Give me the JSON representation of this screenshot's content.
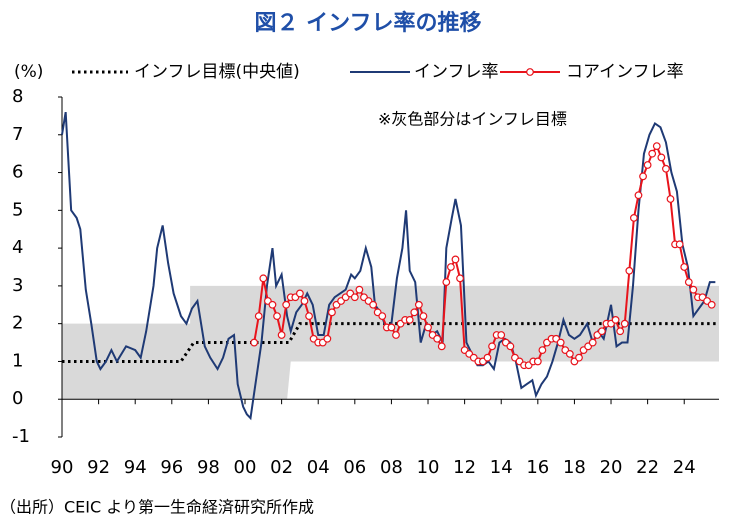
{
  "chart_data": {
    "type": "line",
    "title": "図２ インフレ率の推移",
    "y_unit": "(%)",
    "annotation": "※灰色部分はインフレ目標",
    "xlim": [
      1990,
      2025.9
    ],
    "ylim": [
      -1,
      8
    ],
    "yticks": [
      8,
      7,
      6,
      5,
      4,
      3,
      2,
      1,
      0,
      -1
    ],
    "xticks": [
      {
        "value": 1990,
        "label": "90"
      },
      {
        "value": 1992,
        "label": "92"
      },
      {
        "value": 1994,
        "label": "94"
      },
      {
        "value": 1996,
        "label": "96"
      },
      {
        "value": 1998,
        "label": "98"
      },
      {
        "value": 2000,
        "label": "00"
      },
      {
        "value": 2002,
        "label": "02"
      },
      {
        "value": 2004,
        "label": "04"
      },
      {
        "value": 2006,
        "label": "06"
      },
      {
        "value": 2008,
        "label": "08"
      },
      {
        "value": 2010,
        "label": "10"
      },
      {
        "value": 2012,
        "label": "12"
      },
      {
        "value": 2014,
        "label": "14"
      },
      {
        "value": 2016,
        "label": "16"
      },
      {
        "value": 2018,
        "label": "18"
      },
      {
        "value": 2020,
        "label": "20"
      },
      {
        "value": 2022,
        "label": "22"
      },
      {
        "value": 2024,
        "label": "24"
      }
    ],
    "target_band": {
      "color": "#d9d9d9",
      "x": [
        1990,
        1997,
        1997,
        2002.3,
        2002.5,
        2025.9
      ],
      "low": [
        0,
        0,
        0,
        0,
        1,
        1
      ],
      "high": [
        2,
        2,
        3,
        3,
        3,
        3
      ]
    },
    "series": [
      {
        "name": "インフレ目標(中央値)",
        "color": "#000000",
        "style": "dotted",
        "x": [
          1990,
          1996.5,
          1997.2,
          2002.4,
          2003,
          2025.9
        ],
        "values": [
          1,
          1,
          1.5,
          1.5,
          2,
          2
        ]
      },
      {
        "name": "インフレ率",
        "color": "#1f3a75",
        "style": "solid",
        "x": [
          1990.0,
          1990.2,
          1990.5,
          1990.8,
          1991.0,
          1991.3,
          1991.6,
          1991.9,
          1992.1,
          1992.4,
          1992.7,
          1993.0,
          1993.5,
          1994.0,
          1994.3,
          1994.6,
          1995.0,
          1995.2,
          1995.5,
          1995.8,
          1996.1,
          1996.5,
          1996.8,
          1997.1,
          1997.4,
          1997.8,
          1998.1,
          1998.5,
          1998.8,
          1999.1,
          1999.4,
          1999.6,
          1999.9,
          2000.1,
          2000.3,
          2000.6,
          2000.9,
          2001.2,
          2001.5,
          2001.7,
          2002.0,
          2002.3,
          2002.5,
          2002.8,
          2003.1,
          2003.4,
          2003.7,
          2004.0,
          2004.3,
          2004.6,
          2004.9,
          2005.2,
          2005.5,
          2005.8,
          2006.0,
          2006.3,
          2006.6,
          2006.9,
          2007.1,
          2007.4,
          2007.7,
          2008.0,
          2008.3,
          2008.6,
          2008.8,
          2009.0,
          2009.3,
          2009.6,
          2009.9,
          2010.2,
          2010.5,
          2010.8,
          2011.0,
          2011.3,
          2011.5,
          2011.8,
          2012.1,
          2012.4,
          2012.7,
          2013.0,
          2013.3,
          2013.6,
          2013.9,
          2014.2,
          2014.5,
          2014.8,
          2015.1,
          2015.4,
          2015.7,
          2015.9,
          2016.2,
          2016.5,
          2016.8,
          2017.1,
          2017.4,
          2017.7,
          2018.0,
          2018.3,
          2018.7,
          2019.0,
          2019.3,
          2019.6,
          2020.0,
          2020.3,
          2020.6,
          2020.9,
          2021.2,
          2021.5,
          2021.8,
          2022.1,
          2022.4,
          2022.7,
          2023.0,
          2023.3,
          2023.6,
          2023.9,
          2024.2,
          2024.5,
          2024.8,
          2025.1,
          2025.4,
          2025.7
        ],
        "values": [
          7.0,
          7.6,
          5.0,
          4.8,
          4.5,
          2.9,
          2.0,
          1.0,
          0.8,
          1.0,
          1.3,
          1.0,
          1.4,
          1.3,
          1.1,
          1.8,
          3.0,
          4.0,
          4.6,
          3.6,
          2.8,
          2.2,
          2.0,
          2.4,
          2.6,
          1.4,
          1.1,
          0.8,
          1.1,
          1.6,
          1.7,
          0.4,
          -0.2,
          -0.4,
          -0.5,
          0.5,
          1.5,
          3.0,
          4.0,
          3.0,
          3.3,
          2.2,
          1.8,
          2.3,
          2.5,
          2.8,
          2.5,
          1.7,
          1.7,
          2.5,
          2.7,
          2.8,
          2.9,
          3.3,
          3.2,
          3.4,
          4.0,
          3.5,
          2.5,
          2.3,
          1.9,
          2.0,
          3.2,
          4.0,
          5.0,
          3.4,
          3.1,
          1.5,
          2.0,
          1.7,
          1.8,
          1.5,
          4.0,
          4.8,
          5.3,
          4.6,
          1.5,
          1.2,
          0.9,
          0.9,
          1.0,
          0.8,
          1.5,
          1.6,
          1.5,
          1.0,
          0.3,
          0.4,
          0.5,
          0.1,
          0.4,
          0.6,
          1.0,
          1.5,
          2.1,
          1.7,
          1.6,
          1.7,
          2.0,
          1.5,
          1.8,
          1.6,
          2.5,
          1.4,
          1.5,
          1.5,
          3.0,
          5.0,
          6.5,
          7.0,
          7.3,
          7.2,
          6.8,
          6.0,
          5.5,
          4.1,
          3.5,
          2.2,
          2.4,
          2.6,
          3.1,
          3.1
        ]
      },
      {
        "name": "コアインフレ率",
        "color": "#e8141c",
        "style": "solid",
        "markers": true,
        "x": [
          2000.5,
          2000.75,
          2001.0,
          2001.25,
          2001.5,
          2001.75,
          2002.0,
          2002.25,
          2002.5,
          2002.75,
          2003.0,
          2003.25,
          2003.5,
          2003.75,
          2004.0,
          2004.25,
          2004.5,
          2004.75,
          2005.0,
          2005.25,
          2005.5,
          2005.75,
          2006.0,
          2006.25,
          2006.5,
          2006.75,
          2007.0,
          2007.25,
          2007.5,
          2007.75,
          2008.0,
          2008.25,
          2008.5,
          2008.75,
          2009.0,
          2009.25,
          2009.5,
          2009.75,
          2010.0,
          2010.25,
          2010.5,
          2010.75,
          2011.0,
          2011.25,
          2011.5,
          2011.75,
          2012.0,
          2012.25,
          2012.5,
          2012.75,
          2013.0,
          2013.25,
          2013.5,
          2013.75,
          2014.0,
          2014.25,
          2014.5,
          2014.75,
          2015.0,
          2015.25,
          2015.5,
          2015.75,
          2016.0,
          2016.25,
          2016.5,
          2016.75,
          2017.0,
          2017.25,
          2017.5,
          2017.75,
          2018.0,
          2018.25,
          2018.5,
          2018.75,
          2019.0,
          2019.25,
          2019.5,
          2019.75,
          2020.0,
          2020.25,
          2020.5,
          2020.75,
          2021.0,
          2021.25,
          2021.5,
          2021.75,
          2022.0,
          2022.25,
          2022.5,
          2022.75,
          2023.0,
          2023.25,
          2023.5,
          2023.75,
          2024.0,
          2024.25,
          2024.5,
          2024.75,
          2025.0,
          2025.25,
          2025.5
        ],
        "values": [
          1.5,
          2.2,
          3.2,
          2.6,
          2.5,
          2.2,
          1.7,
          2.5,
          2.7,
          2.7,
          2.8,
          2.6,
          2.2,
          1.6,
          1.5,
          1.5,
          1.6,
          2.3,
          2.5,
          2.6,
          2.7,
          2.8,
          2.7,
          2.9,
          2.7,
          2.6,
          2.5,
          2.3,
          2.2,
          1.9,
          1.9,
          1.7,
          2.0,
          2.1,
          2.1,
          2.3,
          2.5,
          2.2,
          1.9,
          1.7,
          1.6,
          1.4,
          3.1,
          3.5,
          3.7,
          3.2,
          1.3,
          1.2,
          1.1,
          1.0,
          1.0,
          1.1,
          1.4,
          1.7,
          1.7,
          1.5,
          1.4,
          1.1,
          1.0,
          0.9,
          0.9,
          1.0,
          1.0,
          1.3,
          1.5,
          1.6,
          1.6,
          1.5,
          1.3,
          1.2,
          1.0,
          1.1,
          1.3,
          1.4,
          1.5,
          1.7,
          1.8,
          2.0,
          2.0,
          2.1,
          1.8,
          2.0,
          3.4,
          4.8,
          5.4,
          5.9,
          6.2,
          6.5,
          6.7,
          6.4,
          6.1,
          5.3,
          4.1,
          4.1,
          3.5,
          3.1,
          2.9,
          2.7,
          2.7,
          2.6,
          2.5
        ]
      }
    ]
  },
  "source": "（出所）CEIC より第一生命経済研究所作成"
}
